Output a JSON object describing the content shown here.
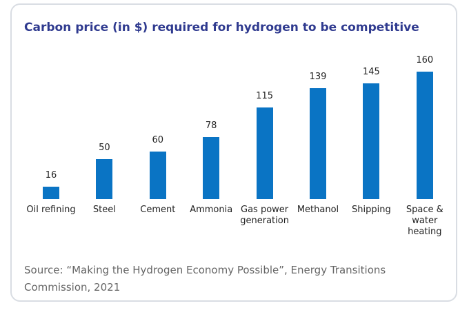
{
  "chart_data": {
    "type": "bar",
    "title": "Carbon price (in $) required for hydrogen to be competitive",
    "categories": [
      "Oil refining",
      "Steel",
      "Cement",
      "Ammonia",
      "Gas power generation",
      "Methanol",
      "Shipping",
      "Space & water heating"
    ],
    "values": [
      16,
      50,
      60,
      78,
      115,
      139,
      145,
      160
    ],
    "color": "#0a74c4",
    "source": "Source: “Making the Hydrogen Economy Possible”, Energy Transitions Commission, 2021"
  }
}
